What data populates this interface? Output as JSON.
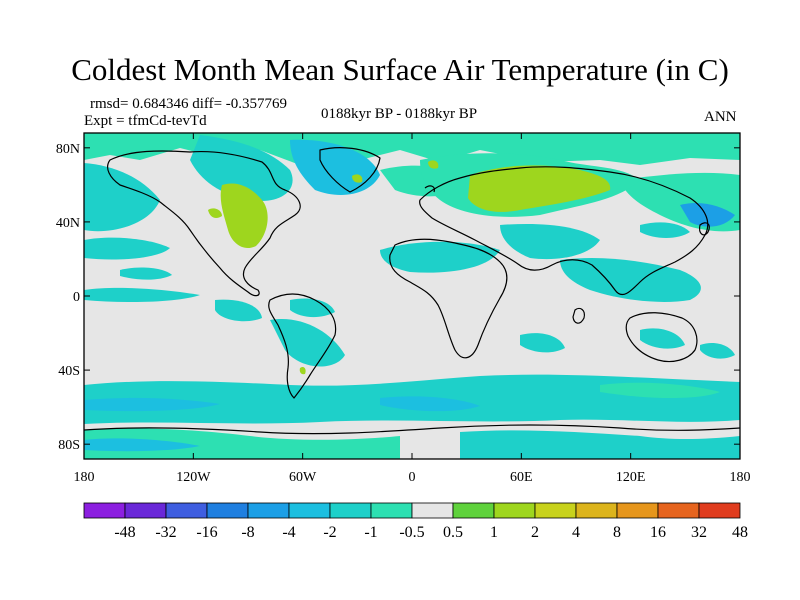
{
  "title": "Coldest Month Mean Surface Air Temperature (in C)",
  "stats": "rmsd= 0.684346 diff= -0.357769",
  "expt": "Expt = tfmCd-tevTd",
  "center_label": "0188kyr BP - 0188kyr BP",
  "season": "ANN",
  "lat_ticks": [
    {
      "label": "80N",
      "lat": 80
    },
    {
      "label": "40N",
      "lat": 40
    },
    {
      "label": "0",
      "lat": 0
    },
    {
      "label": "40S",
      "lat": -40
    },
    {
      "label": "80S",
      "lat": -80
    }
  ],
  "lon_ticks": [
    {
      "label": "180",
      "lon": -180
    },
    {
      "label": "120W",
      "lon": -120
    },
    {
      "label": "60W",
      "lon": -60
    },
    {
      "label": "0",
      "lon": 0
    },
    {
      "label": "60E",
      "lon": 60
    },
    {
      "label": "120E",
      "lon": 120
    },
    {
      "label": "180",
      "lon": 180
    }
  ],
  "colorbar": {
    "colors": [
      "#8c1fe0",
      "#6a28d8",
      "#3f5ee0",
      "#1f7fe0",
      "#1c9fe6",
      "#1cbfe0",
      "#1ed0c9",
      "#2de0b2",
      "#e6e6e6",
      "#5fd23c",
      "#9ed61e",
      "#c8d21c",
      "#dcb41c",
      "#e6961c",
      "#e6641e",
      "#e03c1e"
    ],
    "labels": [
      "-48",
      "-32",
      "-16",
      "-8",
      "-4",
      "-2",
      "-1",
      "-0.5",
      "0.5",
      "1",
      "2",
      "4",
      "8",
      "16",
      "32",
      "48"
    ]
  },
  "colors": {
    "background": "#e6e6e6",
    "cyan": "#1ed0c9",
    "teal": "#1cbfe0",
    "blue": "#1c9fe6",
    "green": "#9ed61e",
    "bright_green": "#5fd23c"
  }
}
